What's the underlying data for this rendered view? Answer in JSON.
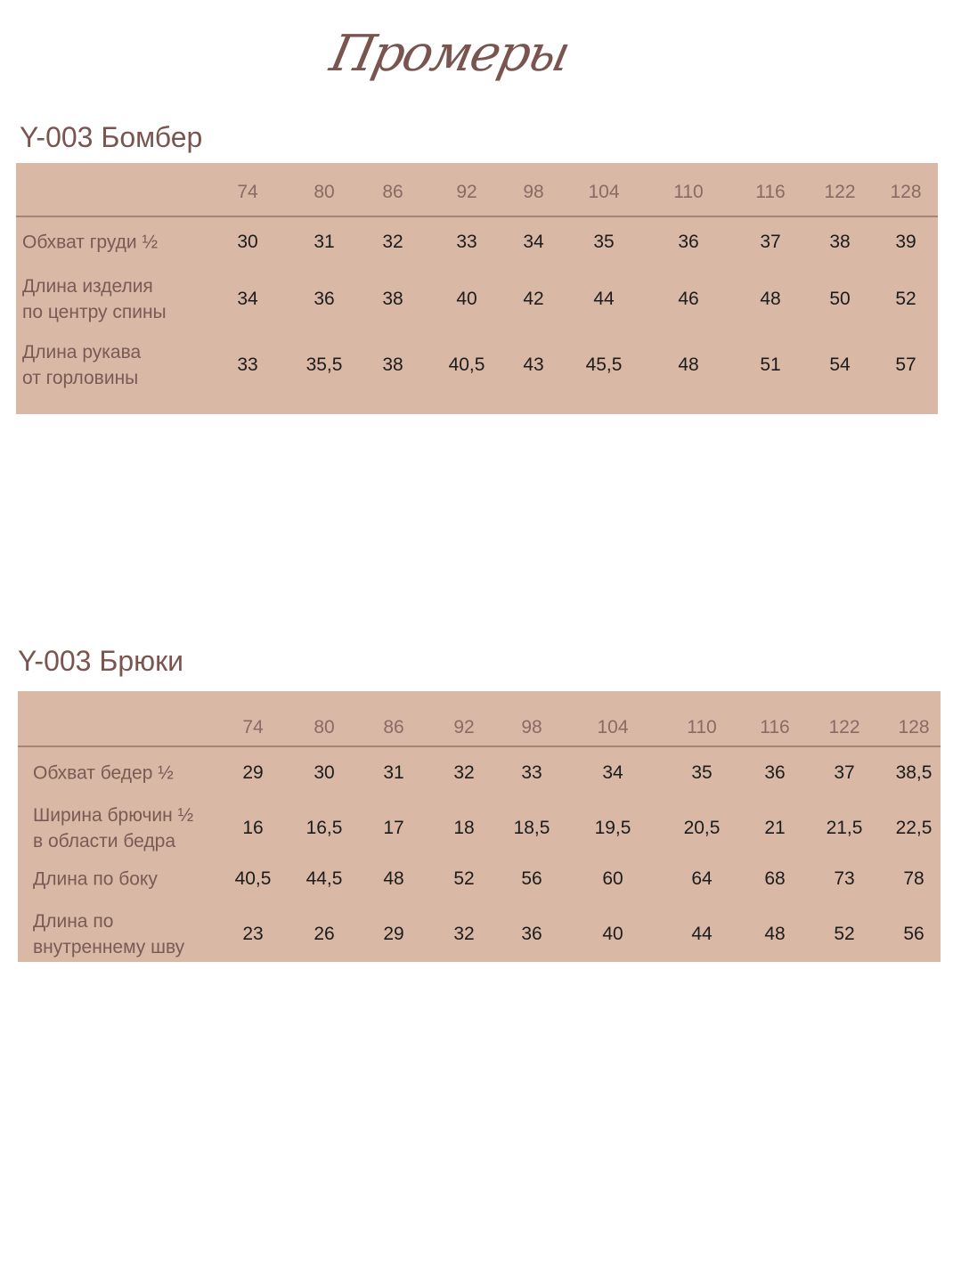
{
  "page_title": "Промеры",
  "colors": {
    "table_bg": "#d9b8a5",
    "title": "#7a5550",
    "label": "#7a5a55",
    "value": "#1c1c1c"
  },
  "tables": [
    {
      "title": "Y-003 Бомбер",
      "sizes": [
        "74",
        "80",
        "86",
        "92",
        "98",
        "104",
        "110",
        "116",
        "122",
        "128"
      ],
      "rows": [
        {
          "label": "Обхват груди ½",
          "values": [
            "30",
            "31",
            "32",
            "33",
            "34",
            "35",
            "36",
            "37",
            "38",
            "39"
          ]
        },
        {
          "label": "Длина изделия\nпо центру спины",
          "values": [
            "34",
            "36",
            "38",
            "40",
            "42",
            "44",
            "46",
            "48",
            "50",
            "52"
          ]
        },
        {
          "label": "Длина рукава\nот горловины",
          "values": [
            "33",
            "35,5",
            "38",
            "40,5",
            "43",
            "45,5",
            "48",
            "51",
            "54",
            "57"
          ]
        }
      ]
    },
    {
      "title": "Y-003 Брюки",
      "sizes": [
        "74",
        "80",
        "86",
        "92",
        "98",
        "104",
        "110",
        "116",
        "122",
        "128"
      ],
      "rows": [
        {
          "label": "Обхват бедер ½",
          "values": [
            "29",
            "30",
            "31",
            "32",
            "33",
            "34",
            "35",
            "36",
            "37",
            "38,5"
          ]
        },
        {
          "label": "Ширина брючин ½\nв области бедра",
          "values": [
            "16",
            "16,5",
            "17",
            "18",
            "18,5",
            "19,5",
            "20,5",
            "21",
            "21,5",
            "22,5"
          ]
        },
        {
          "label": "Длина по боку",
          "values": [
            "40,5",
            "44,5",
            "48",
            "52",
            "56",
            "60",
            "64",
            "68",
            "73",
            "78"
          ]
        },
        {
          "label": "Длина по\nвнутреннему шву",
          "values": [
            "23",
            "26",
            "29",
            "32",
            "36",
            "40",
            "44",
            "48",
            "52",
            "56"
          ]
        }
      ]
    }
  ]
}
